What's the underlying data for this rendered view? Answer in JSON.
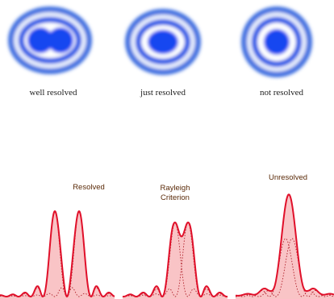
{
  "top_panels": [
    {
      "label": "well resolved"
    },
    {
      "label": "just resolved"
    },
    {
      "label": "not resolved"
    }
  ],
  "bottom_panels": [
    {
      "label": "Resolved"
    },
    {
      "label_lines": [
        "Rayleigh",
        "Criterion"
      ]
    },
    {
      "label": "Unresolved"
    }
  ]
}
